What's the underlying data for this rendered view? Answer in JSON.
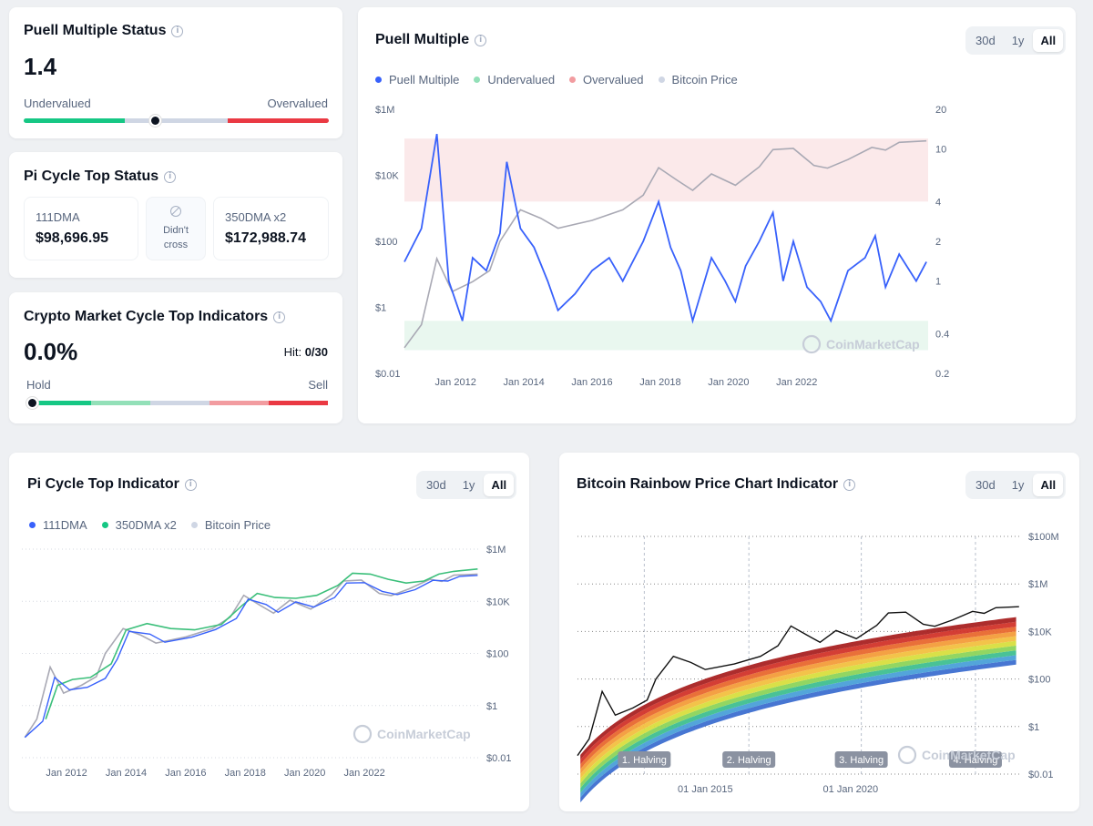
{
  "puell_status": {
    "title": "Puell Multiple Status",
    "value": "1.4",
    "left_label": "Undervalued",
    "right_label": "Overvalued",
    "position": 0.43
  },
  "pi_status": {
    "title": "Pi Cycle Top Status",
    "dma111_label": "111DMA",
    "dma111_value": "$98,696.95",
    "middle_line1": "Didn't",
    "middle_line2": "cross",
    "dma350_label": "350DMA x2",
    "dma350_value": "$172,988.74"
  },
  "cycle_top": {
    "title": "Crypto Market Cycle Top Indicators",
    "value": "0.0%",
    "hit_label": "Hit:",
    "hit_value": "0/30",
    "left_label": "Hold",
    "right_label": "Sell",
    "position": 0.0
  },
  "time_tabs": [
    "30d",
    "1y",
    "All"
  ],
  "watermark": "CoinMarketCap",
  "colors": {
    "blue": "#3861fb",
    "green": "#16c784",
    "red": "#ea3943",
    "grey": "#a6b0c3",
    "undervalued_zone": "#e9f7ef",
    "overvalued_zone": "#fbe9ea"
  },
  "chart_data": [
    {
      "type": "line",
      "title": "Puell Multiple",
      "legend": [
        "Puell Multiple",
        "Undervalued",
        "Overvalued",
        "Bitcoin Price"
      ],
      "x_ticks": [
        "Jan 2012",
        "Jan 2014",
        "Jan 2016",
        "Jan 2018",
        "Jan 2020",
        "Jan 2022"
      ],
      "y_left_ticks": [
        "$1M",
        "$10K",
        "$100",
        "$1",
        "$0.01"
      ],
      "y_right_ticks": [
        "20",
        "10",
        "4",
        "2",
        "1",
        "0.4",
        "0.2"
      ],
      "overvalued_zone": [
        4,
        12
      ],
      "undervalued_zone": [
        0.3,
        0.5
      ],
      "series": [
        {
          "name": "Puell Multiple",
          "x": [
            2010.5,
            2011.0,
            2011.45,
            2011.8,
            2012.2,
            2012.5,
            2012.9,
            2013.3,
            2013.5,
            2013.9,
            2014.3,
            2014.7,
            2015.0,
            2015.5,
            2016.0,
            2016.5,
            2016.9,
            2017.5,
            2017.95,
            2018.3,
            2018.6,
            2018.95,
            2019.5,
            2019.9,
            2020.2,
            2020.5,
            2020.9,
            2021.3,
            2021.6,
            2021.9,
            2022.3,
            2022.7,
            2023.0,
            2023.5,
            2024.0,
            2024.3,
            2024.6,
            2025.0,
            2025.5,
            2025.8
          ],
          "values": [
            1.4,
            2.5,
            13,
            1.0,
            0.5,
            1.5,
            1.2,
            2.3,
            8,
            2.5,
            1.8,
            1.0,
            0.6,
            0.8,
            1.2,
            1.5,
            1.0,
            2.0,
            4.0,
            1.8,
            1.2,
            0.5,
            1.5,
            1.0,
            0.7,
            1.3,
            2.0,
            3.3,
            1.0,
            2.0,
            0.9,
            0.7,
            0.5,
            1.2,
            1.5,
            2.2,
            0.9,
            1.6,
            1.0,
            1.4
          ]
        },
        {
          "name": "Bitcoin Price",
          "x": [
            2010.5,
            2011.0,
            2011.45,
            2011.9,
            2012.5,
            2013.0,
            2013.3,
            2013.9,
            2014.5,
            2015.0,
            2016.0,
            2016.9,
            2017.5,
            2017.95,
            2018.5,
            2018.95,
            2019.5,
            2020.2,
            2020.9,
            2021.3,
            2021.9,
            2022.5,
            2022.9,
            2023.5,
            2024.2,
            2024.6,
            2025.0,
            2025.8
          ],
          "values": [
            0.06,
            0.3,
            30,
            3,
            6,
            13,
            100,
            900,
            500,
            250,
            430,
            900,
            2500,
            17000,
            7000,
            3500,
            11000,
            5000,
            18000,
            60000,
            65000,
            20000,
            16500,
            30000,
            70000,
            58000,
            100000,
            110000
          ]
        }
      ]
    },
    {
      "type": "line",
      "title": "Pi Cycle Top Indicator",
      "legend": [
        "111DMA",
        "350DMA x2",
        "Bitcoin Price"
      ],
      "x_ticks": [
        "Jan 2012",
        "Jan 2014",
        "Jan 2016",
        "Jan 2018",
        "Jan 2020",
        "Jan 2022"
      ],
      "y_ticks": [
        "$1M",
        "$10K",
        "$100",
        "$1",
        "$0.01"
      ],
      "series": [
        {
          "name": "Bitcoin Price",
          "x": [
            2010.6,
            2011.0,
            2011.45,
            2011.9,
            2012.5,
            2013.0,
            2013.3,
            2013.9,
            2014.5,
            2015.0,
            2016.0,
            2016.9,
            2017.5,
            2017.95,
            2018.5,
            2018.95,
            2019.5,
            2020.2,
            2020.9,
            2021.3,
            2021.9,
            2022.5,
            2022.9,
            2023.5,
            2024.2,
            2024.6,
            2025.0,
            2025.8
          ],
          "values": [
            0.06,
            0.3,
            30,
            3,
            6,
            13,
            100,
            900,
            500,
            250,
            430,
            900,
            2500,
            17000,
            7000,
            3500,
            11000,
            5000,
            18000,
            60000,
            65000,
            20000,
            16500,
            30000,
            70000,
            58000,
            100000,
            110000
          ]
        },
        {
          "name": "111DMA",
          "x": [
            2010.6,
            2011.2,
            2011.6,
            2012.1,
            2012.7,
            2013.3,
            2013.7,
            2014.1,
            2014.8,
            2015.3,
            2016.2,
            2017.0,
            2017.7,
            2018.1,
            2018.7,
            2019.1,
            2019.7,
            2020.3,
            2021.0,
            2021.4,
            2022.0,
            2022.6,
            2023.1,
            2023.7,
            2024.3,
            2024.8,
            2025.2,
            2025.8
          ],
          "values": [
            0.06,
            0.25,
            12,
            4,
            5,
            11,
            60,
            700,
            550,
            270,
            420,
            820,
            2200,
            12000,
            7500,
            3800,
            9500,
            6000,
            14000,
            50000,
            52000,
            24000,
            18000,
            28000,
            64000,
            60000,
            90000,
            98696.95
          ]
        },
        {
          "name": "350DMA x2",
          "x": [
            2011.3,
            2011.7,
            2012.2,
            2012.8,
            2013.5,
            2014.0,
            2014.7,
            2015.5,
            2016.3,
            2017.2,
            2017.9,
            2018.4,
            2019.0,
            2019.7,
            2020.4,
            2021.1,
            2021.6,
            2022.2,
            2022.8,
            2023.4,
            2024.0,
            2024.5,
            2025.0,
            2025.8
          ],
          "values": [
            0.3,
            6,
            10,
            12,
            40,
            800,
            1400,
            900,
            800,
            1300,
            7000,
            20000,
            14000,
            13000,
            17000,
            40000,
            120000,
            110000,
            70000,
            50000,
            60000,
            110000,
            140000,
            172988.74
          ]
        }
      ]
    },
    {
      "type": "area",
      "title": "Bitcoin Rainbow Price Chart Indicator",
      "x_ticks": [
        "01 Jan 2015",
        "01 Jan 2020"
      ],
      "y_ticks": [
        "$100M",
        "$1M",
        "$10K",
        "$100",
        "$1",
        "$0.01"
      ],
      "halvings": [
        "1. Halving",
        "2. Halving",
        "3. Halving",
        "4. Halving"
      ],
      "series": [
        {
          "name": "Bitcoin Price",
          "x": [
            2010.6,
            2011.0,
            2011.45,
            2011.9,
            2012.5,
            2013.0,
            2013.3,
            2013.9,
            2014.5,
            2015.0,
            2016.0,
            2016.9,
            2017.5,
            2017.95,
            2018.5,
            2018.95,
            2019.5,
            2020.2,
            2020.9,
            2021.3,
            2021.9,
            2022.5,
            2022.9,
            2023.5,
            2024.2,
            2024.6,
            2025.0,
            2025.8
          ],
          "values": [
            0.06,
            0.3,
            30,
            3,
            6,
            13,
            100,
            900,
            500,
            250,
            430,
            900,
            2500,
            17000,
            7000,
            3500,
            11000,
            5000,
            18000,
            60000,
            65000,
            20000,
            16500,
            30000,
            70000,
            58000,
            100000,
            110000
          ]
        }
      ]
    }
  ]
}
